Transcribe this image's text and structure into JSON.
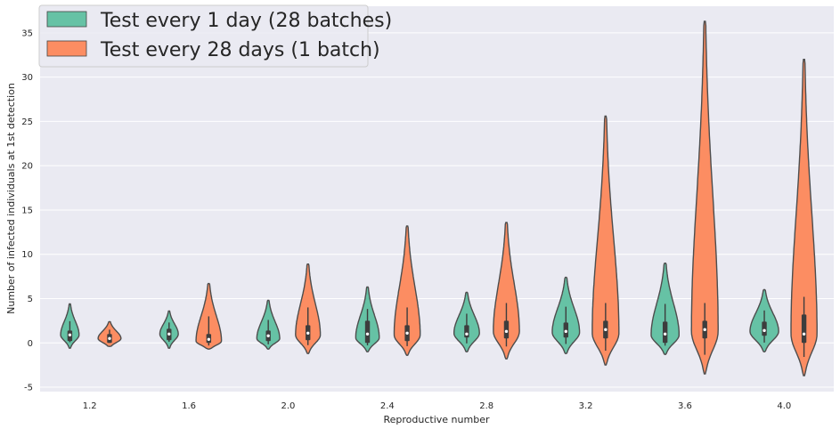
{
  "chart_data": {
    "type": "violin",
    "xlabel": "Reproductive number",
    "ylabel": "Number of infected individuals at 1st detection",
    "categories": [
      "1.2",
      "1.6",
      "2.0",
      "2.4",
      "2.8",
      "3.2",
      "3.6",
      "4.0"
    ],
    "ylim": [
      -5.5,
      38
    ],
    "yticks": [
      -5,
      0,
      5,
      10,
      15,
      20,
      25,
      30,
      35
    ],
    "grid": true,
    "legend_position": "top-left",
    "series": [
      {
        "name": "Test every 1 day (28 batches)",
        "color": "#66c2a5",
        "violins": [
          {
            "min": -0.6,
            "max": 4.4,
            "q1": 0.2,
            "median": 0.9,
            "q3": 1.4,
            "mode": 0.9,
            "width": 0.58
          },
          {
            "min": -0.6,
            "max": 3.6,
            "q1": 0.3,
            "median": 1.0,
            "q3": 1.6,
            "mode": 1.0,
            "width": 0.58
          },
          {
            "min": -0.7,
            "max": 4.8,
            "q1": 0.2,
            "median": 0.8,
            "q3": 1.4,
            "mode": 0.5,
            "width": 0.72
          },
          {
            "min": -1.0,
            "max": 6.3,
            "q1": 0.0,
            "median": 1.0,
            "q3": 2.5,
            "mode": 0.6,
            "width": 0.74
          },
          {
            "min": -1.0,
            "max": 5.7,
            "q1": 0.6,
            "median": 1.0,
            "q3": 2.0,
            "mode": 1.1,
            "width": 0.8
          },
          {
            "min": -1.2,
            "max": 7.4,
            "q1": 0.6,
            "median": 1.3,
            "q3": 2.3,
            "mode": 1.2,
            "width": 0.86
          },
          {
            "min": -1.3,
            "max": 9.0,
            "q1": 0.0,
            "median": 1.0,
            "q3": 2.4,
            "mode": 0.9,
            "width": 0.88
          },
          {
            "min": -1.0,
            "max": 6.0,
            "q1": 0.8,
            "median": 1.4,
            "q3": 2.4,
            "mode": 1.3,
            "width": 0.9
          }
        ]
      },
      {
        "name": "Test every 28 days (1 batch)",
        "color": "#fc8d62",
        "violins": [
          {
            "min": -0.4,
            "max": 2.4,
            "q1": 0.0,
            "median": 0.5,
            "q3": 1.0,
            "mode": 0.5,
            "width": 0.72
          },
          {
            "min": -0.7,
            "max": 6.7,
            "q1": 0.0,
            "median": 0.4,
            "q3": 1.0,
            "mode": 0.2,
            "width": 0.8
          },
          {
            "min": -1.2,
            "max": 8.9,
            "q1": 0.3,
            "median": 1.1,
            "q3": 2.0,
            "mode": 0.9,
            "width": 0.78
          },
          {
            "min": -1.4,
            "max": 13.2,
            "q1": 0.2,
            "median": 1.1,
            "q3": 2.0,
            "mode": 0.9,
            "width": 0.82
          },
          {
            "min": -1.8,
            "max": 13.6,
            "q1": 0.5,
            "median": 1.3,
            "q3": 2.5,
            "mode": 1.3,
            "width": 0.82
          },
          {
            "min": -2.5,
            "max": 25.6,
            "q1": 0.5,
            "median": 1.5,
            "q3": 2.5,
            "mode": 1.1,
            "width": 0.84
          },
          {
            "min": -3.5,
            "max": 36.3,
            "q1": 0.5,
            "median": 1.5,
            "q3": 2.5,
            "mode": 1.3,
            "width": 0.84
          },
          {
            "min": -3.7,
            "max": 32.0,
            "q1": 0.0,
            "median": 1.0,
            "q3": 3.2,
            "mode": 1.0,
            "width": 0.82
          }
        ]
      }
    ]
  }
}
